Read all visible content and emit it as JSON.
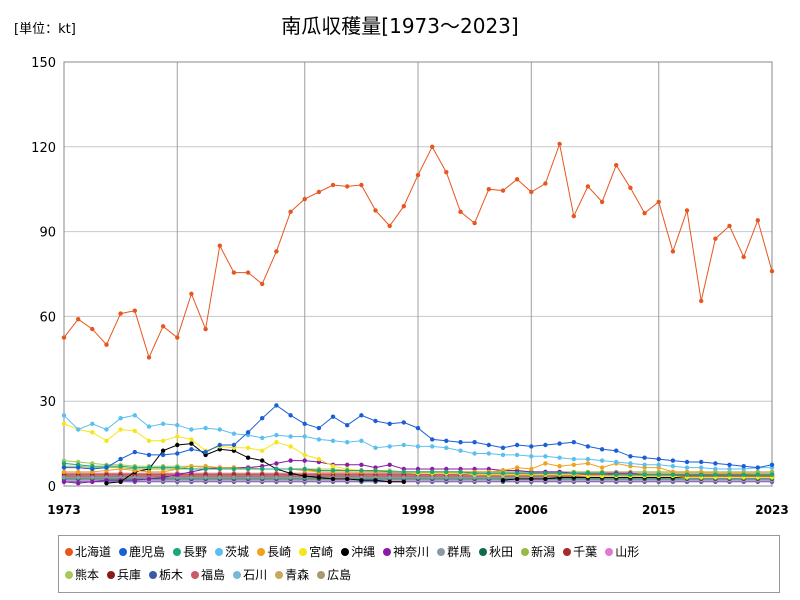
{
  "chart_data": {
    "type": "line",
    "title": "南瓜収穫量[1973～2023]",
    "unit_label": "[単位：kt]",
    "xlim": [
      1973,
      2023
    ],
    "ylim": [
      0,
      150
    ],
    "x_ticks": [
      "1973",
      "1981",
      "1990",
      "1998",
      "2006",
      "2015",
      "2023"
    ],
    "y_ticks": [
      "0",
      "30",
      "60",
      "90",
      "120",
      "150"
    ],
    "grid": true,
    "legend_placement": "bottom",
    "years": [
      1973,
      1974,
      1975,
      1976,
      1977,
      1978,
      1979,
      1980,
      1981,
      1982,
      1983,
      1984,
      1985,
      1986,
      1987,
      1988,
      1989,
      1990,
      1991,
      1992,
      1993,
      1994,
      1995,
      1996,
      1997,
      1998,
      1999,
      2000,
      2001,
      2002,
      2003,
      2004,
      2005,
      2006,
      2007,
      2008,
      2009,
      2010,
      2011,
      2012,
      2013,
      2014,
      2015,
      2016,
      2017,
      2018,
      2019,
      2020,
      2021,
      2022,
      2023
    ],
    "series": [
      {
        "name": "北海道",
        "color": "#e8561f",
        "values": [
          52.5,
          59,
          55.5,
          50,
          61,
          62,
          45.5,
          56.5,
          52.5,
          68,
          55.5,
          85,
          75.5,
          75.5,
          71.5,
          83,
          97,
          101.5,
          104,
          106.5,
          106,
          106.5,
          97.5,
          92,
          99,
          110,
          120,
          111,
          97,
          93,
          105,
          104.5,
          108.5,
          104,
          107,
          121,
          95.5,
          106,
          100.5,
          113.5,
          105.5,
          96.5,
          100.5,
          83,
          97.5,
          65.5,
          87.5,
          92,
          81,
          94,
          76
        ]
      },
      {
        "name": "鹿児島",
        "color": "#1a5fd6",
        "values": [
          6.5,
          6.5,
          6,
          6.5,
          9.5,
          12,
          11,
          11,
          11.5,
          13,
          12,
          14.5,
          14.5,
          19,
          24,
          28.5,
          25,
          22,
          20.5,
          24.5,
          21.5,
          25,
          23,
          22,
          22.5,
          20.5,
          16.5,
          16,
          15.5,
          15.5,
          14.5,
          13.5,
          14.5,
          14,
          14.5,
          15,
          15.5,
          14,
          13,
          12.5,
          10.5,
          10,
          9.5,
          9,
          8.5,
          8.5,
          8,
          7.5,
          7,
          6.5,
          7.5
        ]
      },
      {
        "name": "長野",
        "color": "#1aa87a",
        "values": [
          8,
          7.5,
          7,
          7,
          7,
          6.5,
          6.5,
          6.5,
          6.5,
          6,
          6,
          6,
          6,
          6,
          6,
          6,
          6,
          6,
          5.5,
          5.5,
          5.5,
          5.5,
          5.5,
          5,
          5,
          5,
          5,
          5,
          5,
          4.5,
          4.5,
          4.5,
          4.5,
          4.5,
          4.5,
          4.5,
          4.5,
          4.5,
          4.5,
          4,
          4,
          4,
          4,
          4,
          4,
          4,
          4,
          4,
          4,
          4,
          4
        ]
      },
      {
        "name": "茨城",
        "color": "#5bc0f0",
        "values": [
          25,
          20,
          22,
          20,
          24,
          25,
          21,
          22,
          21.5,
          20,
          20.5,
          20,
          18.5,
          18,
          17,
          18,
          17.5,
          17.5,
          16.5,
          16,
          15.5,
          16,
          13.5,
          14,
          14.5,
          14,
          14,
          13.5,
          12.5,
          11.5,
          11.5,
          11,
          11,
          10.5,
          10.5,
          10,
          9.5,
          9.5,
          9,
          8.5,
          8,
          7.5,
          7.5,
          7,
          6.5,
          6.5,
          6,
          6,
          6,
          6.5,
          6.5
        ]
      },
      {
        "name": "長崎",
        "color": "#f0a21a",
        "values": [
          5,
          5,
          5,
          5.5,
          6,
          5.5,
          5,
          5,
          6,
          7,
          7,
          6.5,
          6.5,
          6,
          6,
          6,
          6,
          5.5,
          5,
          5,
          5,
          5,
          5,
          5,
          5,
          5,
          5,
          5,
          5,
          5,
          5,
          5.5,
          6.5,
          6,
          8,
          7,
          7.5,
          8,
          6.5,
          8,
          7,
          6.5,
          6.5,
          5,
          5,
          5,
          4.5,
          4.5,
          4.5,
          4,
          4
        ]
      },
      {
        "name": "宮崎",
        "color": "#f5e61a",
        "values": [
          22,
          20,
          19,
          16,
          20,
          19.5,
          16,
          16,
          17.5,
          16.5,
          12.5,
          14,
          13.5,
          13.5,
          12.5,
          15.5,
          14,
          11,
          9.5,
          7,
          6,
          5.5,
          5.5,
          5,
          5,
          4.5,
          4.5,
          4.5,
          4.5,
          4,
          4,
          4,
          4,
          4,
          4,
          4,
          4,
          3.5,
          3.5,
          3.5,
          3.5,
          3.5,
          3.5,
          3.5,
          3,
          3,
          3,
          3,
          3,
          3,
          3
        ]
      },
      {
        "name": "沖縄",
        "color": "#000000",
        "values": [
          null,
          null,
          null,
          1,
          1.5,
          5,
          6,
          12.5,
          14.5,
          15,
          11,
          13,
          12.5,
          10,
          9,
          6,
          4.5,
          3.5,
          3,
          2.5,
          2.5,
          2,
          2,
          1.5,
          1.5,
          null,
          null,
          null,
          null,
          null,
          null,
          2,
          2.5,
          2.5,
          2.5,
          3,
          3,
          3,
          3,
          3,
          3,
          3,
          3,
          3,
          3,
          3,
          3,
          3,
          3,
          3,
          3
        ]
      },
      {
        "name": "神奈川",
        "color": "#8a1aa8",
        "values": [
          1.5,
          1,
          1.5,
          2,
          2,
          2,
          2.5,
          3,
          4,
          5,
          6,
          6.5,
          6.5,
          6.5,
          7,
          8,
          9,
          9,
          8.5,
          7.5,
          7.5,
          7.5,
          6.5,
          7.5,
          6,
          6,
          6,
          6,
          6,
          6,
          6,
          5.5,
          5.5,
          5,
          5,
          5,
          4.5,
          4.5,
          4.5,
          4.5,
          4.5,
          4,
          4,
          4,
          4,
          4,
          4,
          4,
          4,
          4,
          4
        ]
      },
      {
        "name": "群馬",
        "color": "#8a9aa8",
        "values": [
          3,
          3,
          3,
          3,
          3,
          3,
          3,
          3,
          3,
          3,
          3,
          3,
          3,
          3,
          3,
          3,
          3,
          3,
          3,
          3,
          3,
          3,
          3,
          3,
          3,
          3,
          3,
          3,
          3,
          3,
          3,
          3,
          3,
          3,
          3,
          3,
          3,
          3,
          3,
          3,
          3,
          3,
          3,
          3,
          3,
          3,
          3,
          3,
          3,
          3,
          3
        ]
      },
      {
        "name": "秋田",
        "color": "#0f6b4a",
        "values": [
          2.5,
          2.5,
          2.5,
          2.5,
          2.5,
          2.5,
          2.5,
          2.5,
          2.5,
          2.5,
          2.5,
          2.5,
          2.5,
          2.5,
          2.5,
          2.5,
          2.5,
          2.5,
          2.5,
          2.5,
          2.5,
          2.5,
          2.5,
          2.5,
          2.5,
          2.5,
          2.5,
          2.5,
          2.5,
          2.5,
          2.5,
          2.5,
          2.5,
          2.5,
          2.5,
          2.5,
          2.5,
          2.5,
          2.5,
          2.5,
          2.5,
          2.5,
          2.5,
          2.5,
          2.5,
          2.5,
          2.5,
          2.5,
          2.5,
          2.5,
          2.5
        ]
      },
      {
        "name": "新潟",
        "color": "#9ab84a",
        "values": [
          7,
          7,
          6.5,
          6.5,
          6.5,
          6,
          6,
          6,
          6,
          6,
          6,
          6,
          6,
          6,
          6,
          6,
          6,
          5.5,
          5.5,
          5.5,
          5.5,
          5.5,
          5,
          5,
          5,
          5,
          5,
          5,
          5,
          5,
          5,
          5,
          5,
          5,
          5,
          5,
          5,
          5,
          5,
          5,
          5,
          5,
          5,
          5,
          5,
          5,
          5,
          5,
          5,
          5,
          5
        ]
      },
      {
        "name": "千葉",
        "color": "#a82a2a",
        "values": [
          4,
          4,
          4,
          4,
          4,
          4,
          4,
          4,
          4,
          4,
          4,
          4,
          4,
          4,
          4,
          4,
          4,
          4,
          4,
          4,
          4,
          4,
          4,
          4,
          4,
          4,
          4,
          4,
          4,
          4,
          4,
          4,
          4,
          4,
          4,
          4,
          4,
          4,
          4,
          4,
          4,
          4,
          4,
          4,
          4,
          4,
          4,
          4,
          4,
          4,
          4
        ]
      },
      {
        "name": "山形",
        "color": "#e07ad0",
        "values": [
          2,
          2,
          2,
          2,
          2,
          2,
          2,
          2,
          2,
          2,
          2,
          2,
          2,
          2,
          2,
          2,
          2,
          2,
          2,
          2,
          2,
          2,
          2,
          2,
          2,
          2,
          2,
          2,
          2,
          2,
          2,
          2,
          2,
          2,
          2,
          2,
          2,
          2,
          2,
          2,
          2,
          2,
          2,
          2,
          2,
          2,
          2,
          2,
          2,
          2,
          2
        ]
      },
      {
        "name": "熊本",
        "color": "#a8c85a",
        "values": [
          9,
          8.5,
          8,
          7.5,
          7.5,
          7,
          7,
          7,
          7,
          7,
          6.5,
          6.5,
          6.5,
          6.5,
          6,
          6,
          6,
          6,
          6,
          6,
          5.5,
          5.5,
          5.5,
          5.5,
          5,
          5,
          5,
          5,
          5,
          5,
          5,
          5,
          5,
          5,
          4.5,
          4.5,
          4.5,
          4.5,
          4.5,
          4.5,
          4.5,
          4.5,
          4.5,
          4.5,
          4.5,
          4.5,
          4.5,
          4.5,
          4.5,
          4.5,
          4.5
        ]
      },
      {
        "name": "兵庫",
        "color": "#8a1a1a",
        "values": [
          3.5,
          3.5,
          3.5,
          3.5,
          3.5,
          3.5,
          3.5,
          3.5,
          3.5,
          3.5,
          3.5,
          3.5,
          3.5,
          3.5,
          3.5,
          3.5,
          3.5,
          3.5,
          3.5,
          3.5,
          3.5,
          3.5,
          3.5,
          3.5,
          3.5,
          3.5,
          3.5,
          3.5,
          3.5,
          3.5,
          3.5,
          3.5,
          3.5,
          3.5,
          3.5,
          3.5,
          3.5,
          3.5,
          3.5,
          3.5,
          3.5,
          3.5,
          3.5,
          3.5,
          3.5,
          3.5,
          3.5,
          3.5,
          3.5,
          3.5,
          3.5
        ]
      },
      {
        "name": "栃木",
        "color": "#3a5aa8",
        "values": [
          1.5,
          1.5,
          1.5,
          1.5,
          1.5,
          1.5,
          1.5,
          1.5,
          1.5,
          1.5,
          1.5,
          1.5,
          1.5,
          1.5,
          1.5,
          1.5,
          1.5,
          1.5,
          1.5,
          1.5,
          1.5,
          1.5,
          1.5,
          1.5,
          1.5,
          1.5,
          1.5,
          1.5,
          1.5,
          1.5,
          1.5,
          1.5,
          1.5,
          1.5,
          1.5,
          1.5,
          1.5,
          1.5,
          1.5,
          1.5,
          1.5,
          1.5,
          1.5,
          1.5,
          1.5,
          1.5,
          1.5,
          1.5,
          1.5,
          1.5,
          1.5
        ]
      },
      {
        "name": "福島",
        "color": "#c85a6a",
        "values": [
          4.5,
          4.5,
          4.5,
          4.5,
          4.5,
          4.5,
          4.5,
          4.5,
          4.5,
          4.5,
          4.5,
          4.5,
          4.5,
          4.5,
          4.5,
          4.5,
          4.5,
          4.5,
          4.5,
          4.5,
          4.5,
          4.5,
          4.5,
          4.5,
          4.5,
          4.5,
          4.5,
          4.5,
          4.5,
          4.5,
          4.5,
          4.5,
          4.5,
          4.5,
          4.5,
          4.5,
          4.5,
          4.5,
          4.5,
          4.5,
          4.5,
          4.5,
          4.5,
          4.5,
          4.5,
          4.5,
          4.5,
          4.5,
          4.5,
          4.5,
          4.5
        ]
      },
      {
        "name": "石川",
        "color": "#7ab8d8",
        "values": [
          2.5,
          2.5,
          2.5,
          2.5,
          2.5,
          2.5,
          2.5,
          2.5,
          2.5,
          2.5,
          2.5,
          2.5,
          2.5,
          2.5,
          2.5,
          2.5,
          2.5,
          2.5,
          2.5,
          2.5,
          2.5,
          2.5,
          2.5,
          2.5,
          2.5,
          2.5,
          2.5,
          2.5,
          2.5,
          2.5,
          2.5,
          2.5,
          2.5,
          2.5,
          2.5,
          2.5,
          2.5,
          2.5,
          2.5,
          2.5,
          2.5,
          2.5,
          2.5,
          2.5,
          2.5,
          2.5,
          2.5,
          2.5,
          2.5,
          2.5,
          2.5
        ]
      },
      {
        "name": "青森",
        "color": "#c8a85a",
        "values": [
          3,
          3,
          3,
          3,
          3,
          3,
          3,
          3,
          3,
          3,
          3,
          3,
          3,
          3,
          3,
          3,
          3,
          3,
          3,
          3,
          3,
          3,
          3,
          3,
          3,
          3,
          3,
          3,
          3,
          3,
          3,
          3,
          3,
          3,
          3,
          3,
          3,
          3,
          3,
          3,
          3,
          3,
          3,
          3,
          3,
          3,
          3,
          3,
          3,
          3,
          3
        ]
      },
      {
        "name": "広島",
        "color": "#a89a6a",
        "values": [
          2,
          2,
          2,
          2,
          2,
          2,
          2,
          2,
          2,
          2,
          2,
          2,
          2,
          2,
          2,
          2,
          2,
          2,
          2,
          2,
          2,
          2,
          2,
          2,
          2,
          2,
          2,
          2,
          2,
          2,
          2,
          2,
          2,
          2,
          2,
          2,
          2,
          2,
          2,
          2,
          2,
          2,
          2,
          2,
          2,
          2,
          2,
          2,
          2,
          2,
          2
        ]
      }
    ]
  }
}
